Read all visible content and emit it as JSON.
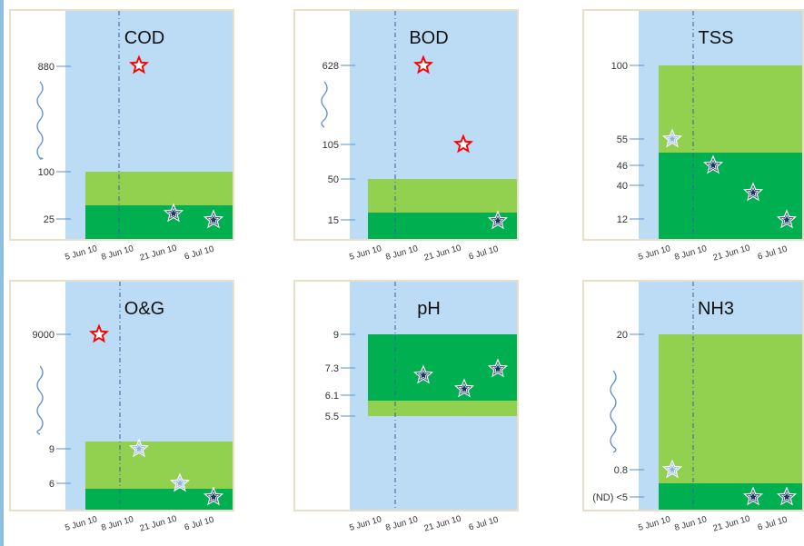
{
  "colors": {
    "plot_bg": "#bcdcf6",
    "light_green": "#92d050",
    "dark_green": "#00b050",
    "frame": "#e8dfc8",
    "tick_line": "#5b8fd0",
    "red_star": "#ff0000",
    "navy_star": "#17375e",
    "light_star": "#8eb4e3",
    "wave": "#5b8fd0"
  },
  "chart_data": [
    {
      "type": "scatter",
      "title": "COD",
      "categories": [
        "5 Jun 10",
        "8 Jun 10",
        "21 Jun 10",
        "6 Jul 10"
      ],
      "y_ticks": [
        "880",
        "100",
        "25"
      ],
      "axis_break": true,
      "bands": [
        {
          "name": "light",
          "from": "25",
          "to": "100"
        },
        {
          "name": "dark",
          "from": "",
          "to": "25"
        }
      ],
      "points": [
        {
          "x": "8 Jun 10",
          "y": "880",
          "style": "red"
        },
        {
          "x": "21 Jun 10",
          "y": "25",
          "style": "navy"
        },
        {
          "x": "6 Jul 10",
          "y": "25",
          "style": "navy"
        }
      ]
    },
    {
      "type": "scatter",
      "title": "BOD",
      "categories": [
        "5 Jun 10",
        "8 Jun 10",
        "21 Jun 10",
        "6 Jul 10"
      ],
      "y_ticks": [
        "628",
        "105",
        "50",
        "15"
      ],
      "axis_break": true,
      "bands": [
        {
          "name": "light",
          "from": "15",
          "to": "50"
        },
        {
          "name": "dark",
          "from": "",
          "to": "15"
        }
      ],
      "points": [
        {
          "x": "8 Jun 10",
          "y": "628",
          "style": "red"
        },
        {
          "x": "21 Jun 10",
          "y": "105",
          "style": "red"
        },
        {
          "x": "6 Jul 10",
          "y": "15",
          "style": "navy"
        }
      ]
    },
    {
      "type": "scatter",
      "title": "TSS",
      "categories": [
        "5 Jun 10",
        "8 Jun 10",
        "21 Jun 10",
        "6 Jul 10"
      ],
      "y_ticks": [
        "100",
        "55",
        "46",
        "40",
        "12"
      ],
      "axis_break": false,
      "bands": [
        {
          "name": "light",
          "from": "50",
          "to": "100"
        },
        {
          "name": "dark",
          "from": "",
          "to": "50"
        }
      ],
      "points": [
        {
          "x": "5 Jun 10",
          "y": "55",
          "style": "light"
        },
        {
          "x": "8 Jun 10",
          "y": "46",
          "style": "navy"
        },
        {
          "x": "21 Jun 10",
          "y": "40",
          "style": "navy"
        },
        {
          "x": "6 Jul 10",
          "y": "12",
          "style": "navy"
        }
      ]
    },
    {
      "type": "scatter",
      "title": "O&G",
      "categories": [
        "5 Jun 10",
        "8 Jun 10",
        "21 Jun 10",
        "6 Jul 10"
      ],
      "y_ticks": [
        "9000",
        "9",
        "6"
      ],
      "axis_break": true,
      "bands": [
        {
          "name": "light",
          "from": "5",
          "to": "10"
        },
        {
          "name": "dark",
          "from": "",
          "to": "5"
        }
      ],
      "points": [
        {
          "x": "5 Jun 10",
          "y": "9000",
          "style": "red"
        },
        {
          "x": "8 Jun 10",
          "y": "9",
          "style": "light"
        },
        {
          "x": "21 Jun 10",
          "y": "6",
          "style": "light"
        },
        {
          "x": "6 Jul 10",
          "y": "5",
          "style": "navy"
        }
      ]
    },
    {
      "type": "scatter",
      "title": "pH",
      "categories": [
        "5 Jun 10",
        "8 Jun 10",
        "21 Jun 10",
        "6 Jul 10"
      ],
      "y_ticks": [
        "9",
        "7.3",
        "6.1",
        "5.5"
      ],
      "axis_break": false,
      "bands": [
        {
          "name": "dark",
          "from": "6",
          "to": "9"
        },
        {
          "name": "light",
          "from": "5.5",
          "to": "6"
        }
      ],
      "points": [
        {
          "x": "8 Jun 10",
          "y": "7",
          "style": "navy"
        },
        {
          "x": "21 Jun 10",
          "y": "6.4",
          "style": "navy"
        },
        {
          "x": "6 Jul 10",
          "y": "7.2",
          "style": "navy"
        }
      ]
    },
    {
      "type": "scatter",
      "title": "NH3",
      "categories": [
        "5 Jun 10",
        "8 Jun 10",
        "21 Jun 10",
        "6 Jul 10"
      ],
      "y_ticks": [
        "20",
        "0.8",
        "(ND) <5"
      ],
      "axis_break": true,
      "bands": [
        {
          "name": "light",
          "from": "<5",
          "to": "20"
        },
        {
          "name": "dark",
          "from": "",
          "to": "<5"
        }
      ],
      "points": [
        {
          "x": "5 Jun 10",
          "y": "0.8",
          "style": "light"
        },
        {
          "x": "21 Jun 10",
          "y": "<5",
          "style": "navy"
        },
        {
          "x": "6 Jul 10",
          "y": "<5",
          "style": "navy"
        }
      ]
    }
  ]
}
